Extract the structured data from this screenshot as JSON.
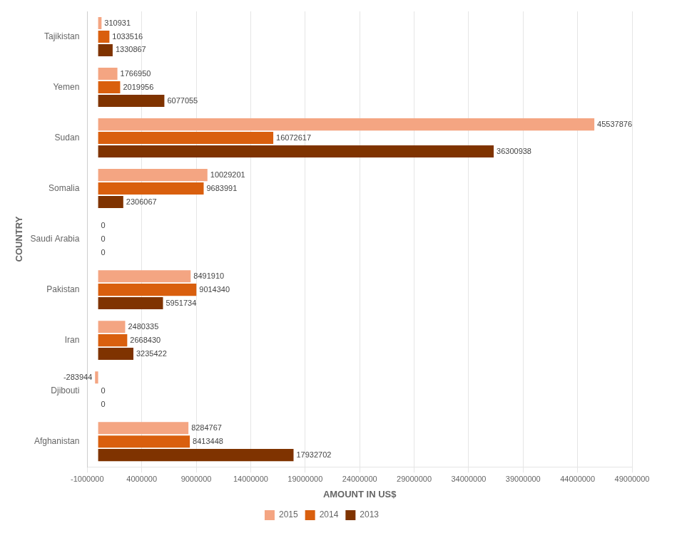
{
  "chart_data": {
    "type": "bar",
    "orientation": "horizontal",
    "categories": [
      "Afghanistan",
      "Djibouti",
      "Iran",
      "Pakistan",
      "Saudi Arabia",
      "Somalia",
      "Sudan",
      "Yemen",
      "Tajikistan"
    ],
    "series": [
      {
        "name": "2015",
        "color": "#f4a582",
        "values": [
          8284767,
          -283944,
          2480335,
          8491910,
          0,
          10029201,
          45537876,
          1766950,
          310931
        ]
      },
      {
        "name": "2014",
        "color": "#d95f0e",
        "values": [
          8413448,
          0,
          2668430,
          9014340,
          0,
          9683991,
          16072617,
          2019956,
          1033516
        ]
      },
      {
        "name": "2013",
        "color": "#7f3300",
        "values": [
          17932702,
          0,
          3235422,
          5951734,
          0,
          2306067,
          36300938,
          6077055,
          1330867
        ]
      }
    ],
    "xlabel": "AMOUNT IN US$",
    "ylabel": "COUNTRY",
    "xlim": [
      -1000000,
      49000000
    ],
    "xticks": [
      -1000000,
      4000000,
      9000000,
      14000000,
      19000000,
      24000000,
      29000000,
      34000000,
      39000000,
      44000000,
      49000000
    ],
    "grid": true,
    "legend": "bottom",
    "data_labels": true
  }
}
